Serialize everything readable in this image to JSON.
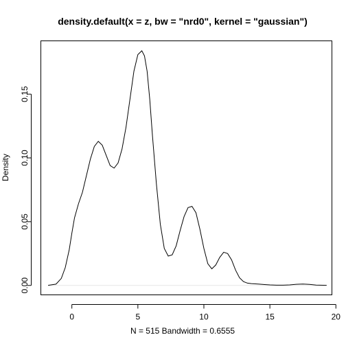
{
  "chart_data": {
    "type": "line",
    "title": "density.default(x = z, bw = \"nrd0\", kernel = \"gaussian\")",
    "xlabel": "N = 515   Bandwidth = 0.6555",
    "ylabel": "Density",
    "xlim": [
      -2.35,
      19.7
    ],
    "ylim": [
      -0.0074,
      0.1918
    ],
    "x_ticks": [
      0,
      5,
      10,
      15,
      20
    ],
    "x_tick_labels": [
      "0",
      "5",
      "10",
      "15",
      "20"
    ],
    "y_ticks": [
      0,
      0.05,
      0.1,
      0.15
    ],
    "y_tick_labels": [
      "0.00",
      "0.05",
      "0.10",
      "0.15"
    ],
    "grid": false,
    "baseline_y": 0,
    "series": [
      {
        "x": [
          -1.8,
          -1.2,
          -0.8,
          -0.5,
          -0.2,
          0.0,
          0.2,
          0.5,
          0.8,
          1.1,
          1.4,
          1.7,
          2.0,
          2.3,
          2.6,
          2.9,
          3.2,
          3.5,
          3.8,
          4.1,
          4.4,
          4.7,
          5.0,
          5.3,
          5.5,
          5.7,
          5.9,
          6.1,
          6.4,
          6.7,
          7.0,
          7.3,
          7.6,
          7.9,
          8.2,
          8.5,
          8.8,
          9.1,
          9.4,
          9.7,
          10.0,
          10.3,
          10.6,
          10.9,
          11.2,
          11.5,
          11.8,
          12.1,
          12.4,
          12.7,
          13.0,
          13.3,
          13.6,
          13.9,
          14.2,
          14.6,
          15.0,
          15.5,
          16.0,
          16.5,
          17.0,
          17.5,
          18.0,
          18.5,
          19.3
        ],
        "y": [
          0.0001,
          0.001,
          0.0055,
          0.014,
          0.028,
          0.041,
          0.053,
          0.064,
          0.073,
          0.086,
          0.099,
          0.109,
          0.113,
          0.11,
          0.102,
          0.094,
          0.092,
          0.096,
          0.107,
          0.124,
          0.146,
          0.168,
          0.181,
          0.184,
          0.18,
          0.168,
          0.146,
          0.118,
          0.08,
          0.048,
          0.029,
          0.023,
          0.024,
          0.031,
          0.043,
          0.054,
          0.061,
          0.062,
          0.057,
          0.044,
          0.029,
          0.017,
          0.013,
          0.016,
          0.022,
          0.026,
          0.025,
          0.02,
          0.012,
          0.006,
          0.003,
          0.0018,
          0.0014,
          0.0012,
          0.001,
          0.0007,
          0.0004,
          0.0002,
          0.0002,
          0.0004,
          0.0009,
          0.0011,
          0.0008,
          0.0003,
          0.0001
        ]
      }
    ]
  }
}
